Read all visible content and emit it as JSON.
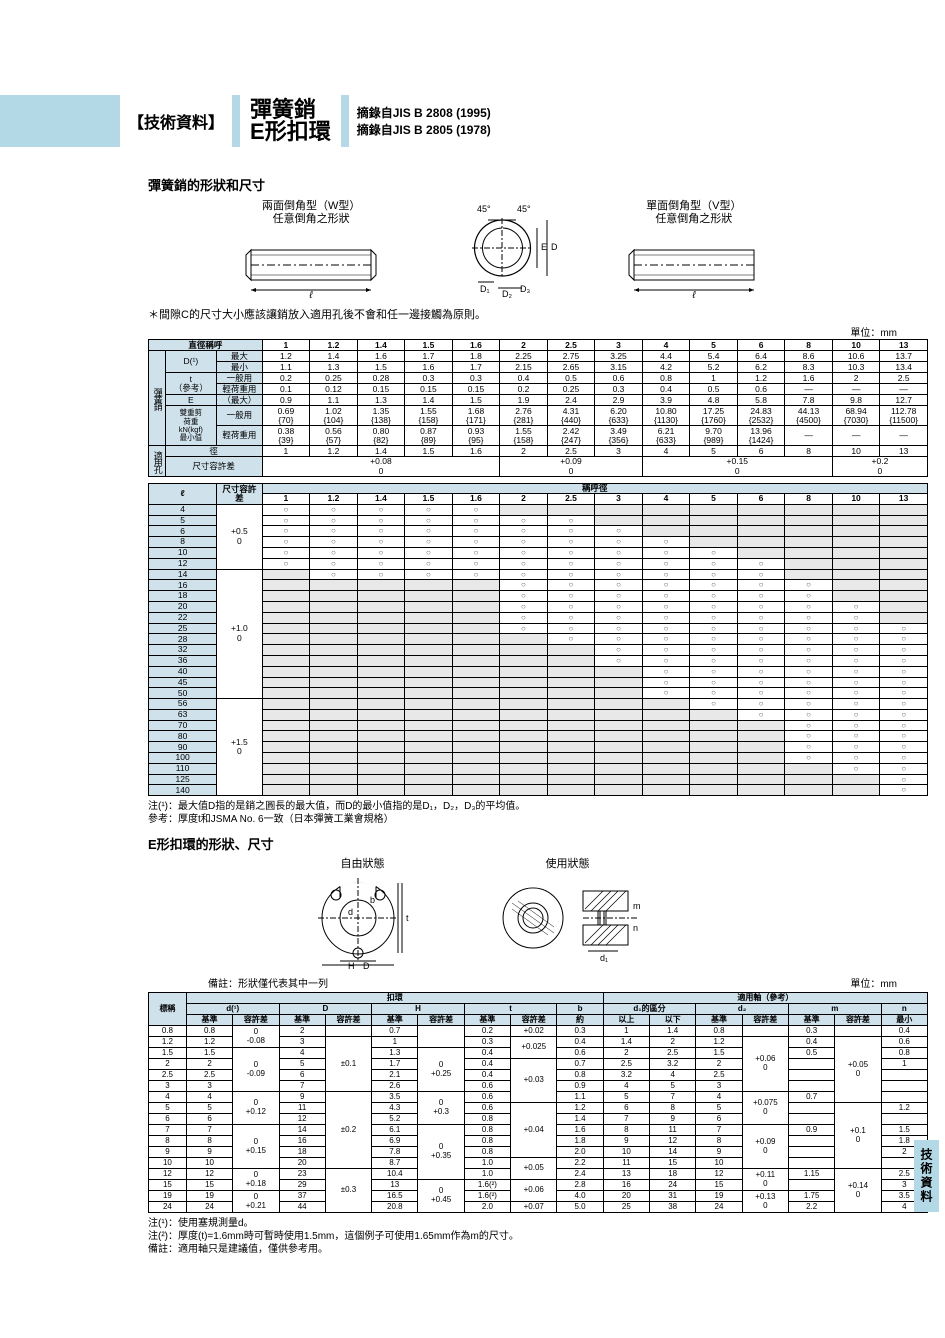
{
  "header": {
    "bracket": "【技術資料】",
    "title1": "彈簧銷",
    "title2": "E形扣環",
    "src1": "摘錄自JIS B 2808 (1995)",
    "src2": "摘錄自JIS B 2805 (1978)"
  },
  "sec1": {
    "title": "彈簧銷的形狀和尺寸",
    "diag_w": "兩面倒角型（W型）\n任意倒角之形狀",
    "diag_v": "單面倒角型（V型）\n任意倒角之形狀",
    "note": "＊間隙C的尺寸大小應該讓銷放入適用孔後不會和任一邊接觸為原則。",
    "unit": "單位：mm"
  },
  "tab1": {
    "corner": "直徑稱呼",
    "cols": [
      "1",
      "1.2",
      "1.4",
      "1.5",
      "1.6",
      "2",
      "2.5",
      "3",
      "4",
      "5",
      "6",
      "8",
      "10",
      "13"
    ],
    "rows": [
      {
        "g": "彈簧銷",
        "lbl": "D(¹)",
        "sub": "最大",
        "v": [
          "1.2",
          "1.4",
          "1.6",
          "1.7",
          "1.8",
          "2.25",
          "2.75",
          "3.25",
          "4.4",
          "5.4",
          "6.4",
          "8.6",
          "10.6",
          "13.7"
        ]
      },
      {
        "sub": "最小",
        "v": [
          "1.1",
          "1.3",
          "1.5",
          "1.6",
          "1.7",
          "2.15",
          "2.65",
          "3.15",
          "4.2",
          "5.2",
          "6.2",
          "8.3",
          "10.3",
          "13.4"
        ]
      },
      {
        "lbl": "t\n（參考）",
        "sub": "一般用",
        "v": [
          "0.2",
          "0.25",
          "0.28",
          "0.3",
          "0.3",
          "0.4",
          "0.5",
          "0.6",
          "0.8",
          "1",
          "1.2",
          "1.6",
          "2",
          "2.5"
        ]
      },
      {
        "sub": "輕荷重用",
        "v": [
          "0.1",
          "0.12",
          "0.15",
          "0.15",
          "0.15",
          "0.2",
          "0.25",
          "0.3",
          "0.4",
          "0.5",
          "0.6",
          "—",
          "—",
          "—"
        ]
      },
      {
        "lbl": "E",
        "sub": "（最大）",
        "v": [
          "0.9",
          "1.1",
          "1.3",
          "1.4",
          "1.5",
          "1.9",
          "2.4",
          "2.9",
          "3.9",
          "4.8",
          "5.8",
          "7.8",
          "9.8",
          "12.7"
        ]
      },
      {
        "lbl": "雙重剪\n荷重\nkN(kgf)\n最小值",
        "sub": "一般用",
        "v": [
          "0.69\n{70}",
          "1.02\n{104}",
          "1.35\n{138}",
          "1.55\n{158}",
          "1.68\n{171}",
          "2.76\n{281}",
          "4.31\n{440}",
          "6.20\n{633}",
          "10.80\n{1130}",
          "17.25\n{1760}",
          "24.83\n{2532}",
          "44.13\n{4500}",
          "68.94\n{7030}",
          "112.78\n{11500}"
        ]
      },
      {
        "sub": "輕荷重用",
        "v": [
          "0.38\n{39}",
          "0.56\n{57}",
          "0.80\n{82}",
          "0.87\n{89}",
          "0.93\n{95}",
          "1.55\n{158}",
          "2.42\n{247}",
          "3.49\n{356}",
          "6.21\n{633}",
          "9.70\n{989}",
          "13.96\n{1424}",
          "—",
          "—",
          "—"
        ]
      },
      {
        "g": "適用孔",
        "lbl": "徑",
        "v": [
          "1",
          "1.2",
          "1.4",
          "1.5",
          "1.6",
          "2",
          "2.5",
          "3",
          "4",
          "5",
          "6",
          "8",
          "10",
          "13"
        ]
      },
      {
        "lbl": "尺寸容許差",
        "v": [
          "",
          "",
          "+0.08\n0",
          "",
          "",
          "",
          "+0.09\n0",
          "",
          "",
          "",
          "",
          "+0.15\n0",
          "",
          "+0.2\n0"
        ]
      }
    ]
  },
  "tab2": {
    "lhead": "ℓ",
    "sub": "尺寸容許差",
    "chead": "稱呼徑",
    "cols": [
      "1",
      "1.2",
      "1.4",
      "1.5",
      "1.6",
      "2",
      "2.5",
      "3",
      "4",
      "5",
      "6",
      "8",
      "10",
      "13"
    ],
    "lrows": [
      "4",
      "5",
      "6",
      "8",
      "10",
      "12",
      "14",
      "16",
      "18",
      "20",
      "22",
      "25",
      "28",
      "32",
      "36",
      "40",
      "45",
      "50",
      "56",
      "63",
      "70",
      "80",
      "90",
      "100",
      "110",
      "125",
      "140"
    ],
    "tol": [
      {
        "span": 6,
        "v": "+0.5\n0"
      },
      {
        "span": 12,
        "v": "+1.0\n0"
      },
      {
        "span": 9,
        "v": "+1.5\n0"
      }
    ],
    "marks": {
      "4": [
        1,
        1,
        1,
        1,
        1,
        0,
        0,
        0,
        0,
        0,
        0,
        0,
        0,
        0
      ],
      "5": [
        1,
        1,
        1,
        1,
        1,
        1,
        1,
        0,
        0,
        0,
        0,
        0,
        0,
        0
      ],
      "6": [
        1,
        1,
        1,
        1,
        1,
        1,
        1,
        1,
        0,
        0,
        0,
        0,
        0,
        0
      ],
      "8": [
        1,
        1,
        1,
        1,
        1,
        1,
        1,
        1,
        1,
        0,
        0,
        0,
        0,
        0
      ],
      "10": [
        1,
        1,
        1,
        1,
        1,
        1,
        1,
        1,
        1,
        1,
        0,
        0,
        0,
        0
      ],
      "12": [
        1,
        1,
        1,
        1,
        1,
        1,
        1,
        1,
        1,
        1,
        1,
        0,
        0,
        0
      ],
      "14": [
        0,
        1,
        1,
        1,
        1,
        1,
        1,
        1,
        1,
        1,
        1,
        0,
        0,
        0
      ],
      "16": [
        0,
        0,
        0,
        0,
        0,
        1,
        1,
        1,
        1,
        1,
        1,
        1,
        0,
        0
      ],
      "18": [
        0,
        0,
        0,
        0,
        0,
        1,
        1,
        1,
        1,
        1,
        1,
        1,
        0,
        0
      ],
      "20": [
        0,
        0,
        0,
        0,
        0,
        1,
        1,
        1,
        1,
        1,
        1,
        1,
        1,
        0
      ],
      "22": [
        0,
        0,
        0,
        0,
        0,
        1,
        1,
        1,
        1,
        1,
        1,
        1,
        1,
        0
      ],
      "25": [
        0,
        0,
        0,
        0,
        0,
        1,
        1,
        1,
        1,
        1,
        1,
        1,
        1,
        1
      ],
      "28": [
        0,
        0,
        0,
        0,
        0,
        0,
        1,
        1,
        1,
        1,
        1,
        1,
        1,
        1
      ],
      "32": [
        0,
        0,
        0,
        0,
        0,
        0,
        0,
        1,
        1,
        1,
        1,
        1,
        1,
        1
      ],
      "36": [
        0,
        0,
        0,
        0,
        0,
        0,
        0,
        1,
        1,
        1,
        1,
        1,
        1,
        1
      ],
      "40": [
        0,
        0,
        0,
        0,
        0,
        0,
        0,
        0,
        1,
        1,
        1,
        1,
        1,
        1
      ],
      "45": [
        0,
        0,
        0,
        0,
        0,
        0,
        0,
        0,
        1,
        1,
        1,
        1,
        1,
        1
      ],
      "50": [
        0,
        0,
        0,
        0,
        0,
        0,
        0,
        0,
        1,
        1,
        1,
        1,
        1,
        1
      ],
      "56": [
        0,
        0,
        0,
        0,
        0,
        0,
        0,
        0,
        0,
        1,
        1,
        1,
        1,
        1
      ],
      "63": [
        0,
        0,
        0,
        0,
        0,
        0,
        0,
        0,
        0,
        0,
        1,
        1,
        1,
        1
      ],
      "70": [
        0,
        0,
        0,
        0,
        0,
        0,
        0,
        0,
        0,
        0,
        0,
        1,
        1,
        1
      ],
      "80": [
        0,
        0,
        0,
        0,
        0,
        0,
        0,
        0,
        0,
        0,
        0,
        1,
        1,
        1
      ],
      "90": [
        0,
        0,
        0,
        0,
        0,
        0,
        0,
        0,
        0,
        0,
        0,
        1,
        1,
        1
      ],
      "100": [
        0,
        0,
        0,
        0,
        0,
        0,
        0,
        0,
        0,
        0,
        0,
        1,
        1,
        1
      ],
      "110": [
        0,
        0,
        0,
        0,
        0,
        0,
        0,
        0,
        0,
        0,
        0,
        0,
        1,
        1
      ],
      "125": [
        0,
        0,
        0,
        0,
        0,
        0,
        0,
        0,
        0,
        0,
        0,
        0,
        0,
        1
      ],
      "140": [
        0,
        0,
        0,
        0,
        0,
        0,
        0,
        0,
        0,
        0,
        0,
        0,
        0,
        1
      ]
    }
  },
  "foot1": "注(¹)：最大值D指的是銷之圓長的最大值，而D的最小值指的是D₁，D₂，D₃的平均值。\n參考：厚度t和JSMA No. 6一致（日本彈簧工業會規格）",
  "sec2": {
    "title": "E形扣環的形狀、尺寸",
    "cap1": "自由狀態",
    "cap2": "使用狀態",
    "note": "備註：形狀僅代表其中一列",
    "unit": "單位：mm"
  },
  "tab3": {
    "h1": [
      "標稱",
      "扣環",
      "適用軸（參考）"
    ],
    "h2": [
      "d(¹)",
      "D",
      "H",
      "t",
      "b",
      "d₁的區分",
      "d₂",
      "m",
      "n"
    ],
    "h3": [
      "基準",
      "容許差",
      "基準",
      "容許差",
      "基準",
      "容許差",
      "基準",
      "容許差",
      "約",
      "以上",
      "以下",
      "基準",
      "容許差",
      "基準",
      "容許差",
      "最小"
    ],
    "rows": [
      [
        "0.8",
        "0.8",
        "0\n-0.08",
        "2",
        "",
        "0.7",
        "",
        "0.2",
        "+0.02",
        "0.3",
        "1",
        "1.4",
        "0.8",
        "",
        "0.3",
        "",
        "0.4"
      ],
      [
        "1.2",
        "1.2",
        "",
        "3",
        "±0.1",
        "1",
        "",
        "0.3",
        "+0.025",
        "0.4",
        "1.4",
        "2",
        "1.2",
        "+0.06\n0",
        "0.4",
        "+0.05\n0",
        "0.6"
      ],
      [
        "1.5",
        "1.5",
        "0\n-0.09",
        "4",
        "",
        "1.3",
        "0\n+0.25",
        "0.4",
        "",
        "0.6",
        "2",
        "2.5",
        "1.5",
        "",
        "0.5",
        "",
        "0.8"
      ],
      [
        "2",
        "2",
        "",
        "5",
        "",
        "1.7",
        "",
        "0.4",
        "+0.03",
        "0.7",
        "2.5",
        "3.2",
        "2",
        "",
        "",
        "",
        "1"
      ],
      [
        "2.5",
        "2.5",
        "",
        "6",
        "",
        "2.1",
        "",
        "0.4",
        "",
        "0.8",
        "3.2",
        "4",
        "2.5",
        "",
        "",
        "",
        ""
      ],
      [
        "3",
        "3",
        "",
        "7",
        "",
        "2.6",
        "",
        "0.6",
        "",
        "0.9",
        "4",
        "5",
        "3",
        "",
        "",
        "",
        ""
      ],
      [
        "4",
        "4",
        "0\n+0.12",
        "9",
        "±0.2",
        "3.5",
        "0\n+0.3",
        "0.6",
        "",
        "1.1",
        "5",
        "7",
        "4",
        "+0.075\n0",
        "0.7",
        "",
        ""
      ],
      [
        "5",
        "5",
        "",
        "11",
        "",
        "4.3",
        "",
        "0.6",
        "+0.04",
        "1.2",
        "6",
        "8",
        "5",
        "",
        "",
        "+0.1\n0",
        "1.2"
      ],
      [
        "6",
        "6",
        "",
        "12",
        "",
        "5.2",
        "",
        "0.8",
        "",
        "1.4",
        "7",
        "9",
        "6",
        "",
        "",
        "",
        ""
      ],
      [
        "7",
        "7",
        "0\n+0.15",
        "14",
        "",
        "6.1",
        "0\n+0.35",
        "0.8",
        "",
        "1.6",
        "8",
        "11",
        "7",
        "+0.09\n0",
        "0.9",
        "",
        "1.5"
      ],
      [
        "8",
        "8",
        "",
        "16",
        "",
        "6.9",
        "",
        "0.8",
        "",
        "1.8",
        "9",
        "12",
        "8",
        "",
        "",
        "",
        "1.8"
      ],
      [
        "9",
        "9",
        "",
        "18",
        "",
        "7.8",
        "",
        "0.8",
        "",
        "2.0",
        "10",
        "14",
        "9",
        "",
        "",
        "",
        "2"
      ],
      [
        "10",
        "10",
        "",
        "20",
        "",
        "8.7",
        "",
        "1.0",
        "+0.05",
        "2.2",
        "11",
        "15",
        "10",
        "",
        "",
        "",
        ""
      ],
      [
        "12",
        "12",
        "0\n+0.18",
        "23",
        "±0.3",
        "10.4",
        "",
        "1.0",
        "",
        "2.4",
        "13",
        "18",
        "12",
        "+0.11\n0",
        "1.15",
        "+0.14\n0",
        "2.5"
      ],
      [
        "15",
        "15",
        "",
        "29",
        "",
        "13",
        "0\n+0.45",
        "1.6(²)",
        "+0.06",
        "2.8",
        "16",
        "24",
        "15",
        "",
        "",
        "",
        "3"
      ],
      [
        "19",
        "19",
        "0\n+0.21",
        "37",
        "",
        "16.5",
        "",
        "1.6(²)",
        "",
        "4.0",
        "20",
        "31",
        "19",
        "+0.13\n0",
        "1.75",
        "",
        "3.5"
      ],
      [
        "24",
        "24",
        "",
        "44",
        "",
        "20.8",
        "",
        "2.0",
        "+0.07",
        "5.0",
        "25",
        "38",
        "24",
        "",
        "2.2",
        "",
        "4"
      ]
    ]
  },
  "foot2": "注(¹)：使用塞規測量d。\n注(²)：厚度(t)=1.6mm時可暫時使用1.5mm，這個例子可使用1.65mm作為m的尺寸。\n備註：適用軸只是建議值，僅供參考用。",
  "sidebar": "技術資料"
}
